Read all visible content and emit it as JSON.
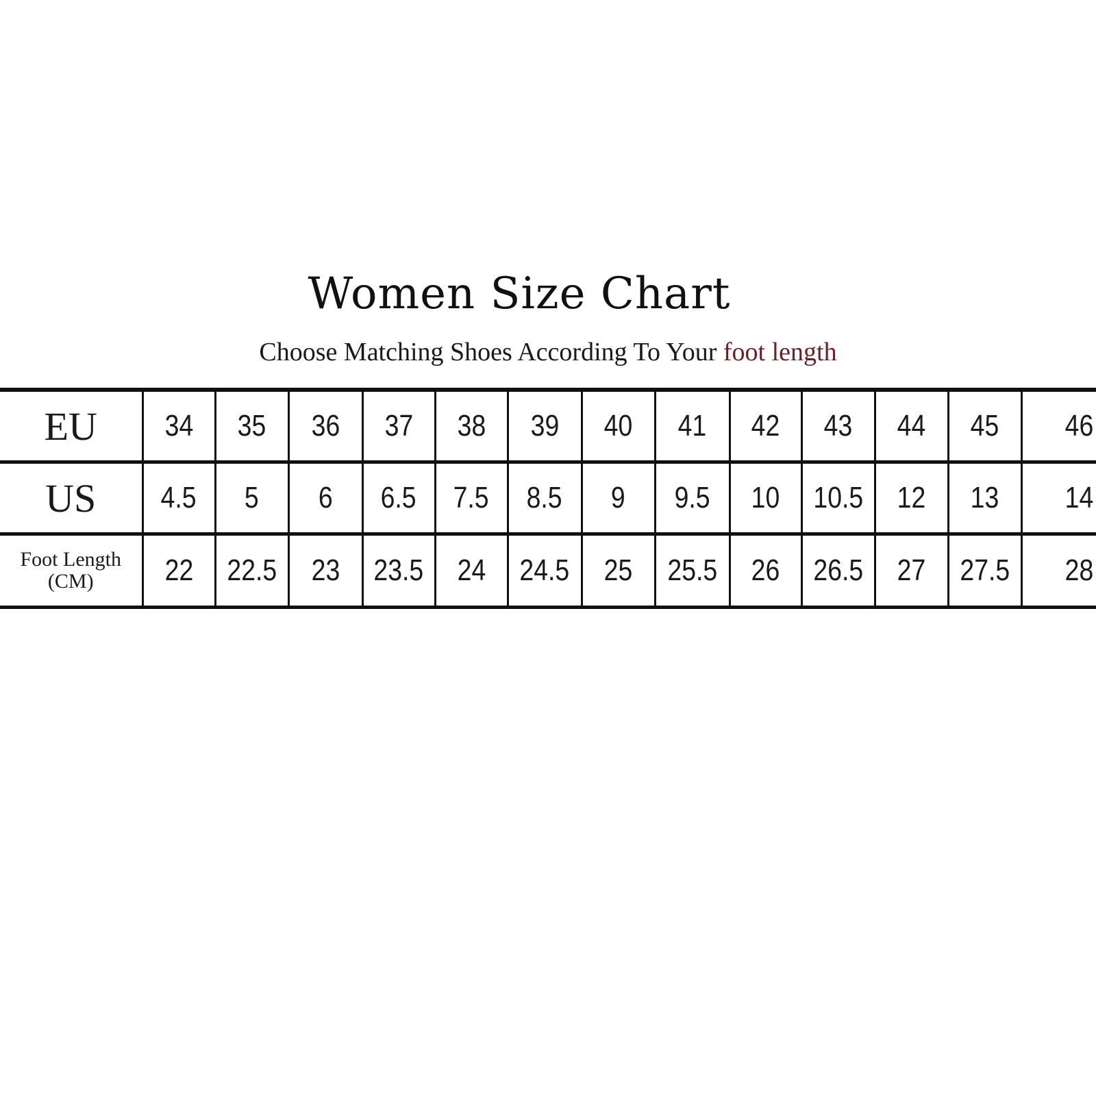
{
  "title": "Women Size Chart",
  "subtitle": {
    "text": "Choose Matching Shoes According To Your ",
    "highlight": "foot length",
    "highlight_color": "#6b2026"
  },
  "chart_data": {
    "type": "table",
    "title": "Women Size Chart",
    "rows": [
      {
        "label": "EU",
        "values": [
          "34",
          "35",
          "36",
          "37",
          "38",
          "39",
          "40",
          "41",
          "42",
          "43",
          "44",
          "45",
          "46"
        ]
      },
      {
        "label": "US",
        "values": [
          "4.5",
          "5",
          "6",
          "6.5",
          "7.5",
          "8.5",
          "9",
          "9.5",
          "10",
          "10.5",
          "12",
          "13",
          "14"
        ]
      },
      {
        "label": "Foot Length",
        "sublabel": "(CM)",
        "values": [
          "22",
          "22.5",
          "23",
          "23.5",
          "24",
          "24.5",
          "25",
          "25.5",
          "26",
          "26.5",
          "27",
          "27.5",
          "28"
        ]
      }
    ]
  }
}
